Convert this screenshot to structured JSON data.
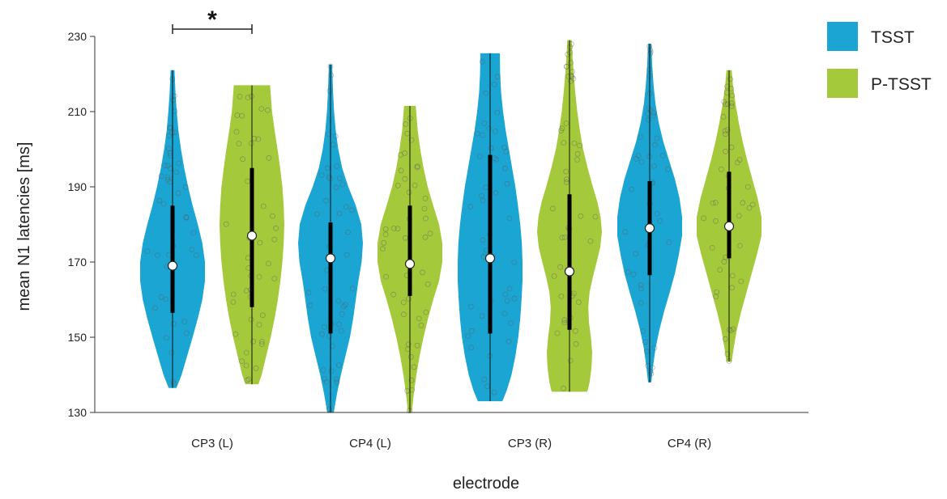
{
  "chart_data": {
    "type": "violin",
    "xlabel": "electrode",
    "ylabel": "mean N1 latencies [ms]",
    "ylim": [
      130,
      230
    ],
    "yticks": [
      130,
      150,
      170,
      190,
      210,
      230
    ],
    "categories": [
      "CP3 (L)",
      "CP4 (L)",
      "CP3 (R)",
      "CP4 (R)"
    ],
    "legend_position": "top-right",
    "grid": false,
    "significance": {
      "label": "*",
      "between": [
        "CP3 (L) TSST",
        "CP3 (L) P-TSST"
      ]
    },
    "series": [
      {
        "name": "TSST",
        "color": "#1aa5d3",
        "groups": [
          {
            "category": "CP3 (L)",
            "min": 136.5,
            "max": 221,
            "q1": 156.5,
            "median": 169,
            "q3": 185,
            "density": [
              [
                136.5,
                0.12
              ],
              [
                140,
                0.28
              ],
              [
                145,
                0.45
              ],
              [
                150,
                0.62
              ],
              [
                155,
                0.78
              ],
              [
                160,
                0.92
              ],
              [
                165,
                1.0
              ],
              [
                170,
                1.0
              ],
              [
                175,
                0.92
              ],
              [
                180,
                0.78
              ],
              [
                185,
                0.62
              ],
              [
                190,
                0.48
              ],
              [
                195,
                0.36
              ],
              [
                200,
                0.26
              ],
              [
                205,
                0.18
              ],
              [
                210,
                0.13
              ],
              [
                215,
                0.09
              ],
              [
                221,
                0.06
              ]
            ]
          },
          {
            "category": "CP4 (L)",
            "min": 130,
            "max": 222.5,
            "q1": 151,
            "median": 171,
            "q3": 180.5,
            "density": [
              [
                130,
                0.1
              ],
              [
                135,
                0.2
              ],
              [
                140,
                0.32
              ],
              [
                145,
                0.46
              ],
              [
                150,
                0.6
              ],
              [
                155,
                0.7
              ],
              [
                160,
                0.78
              ],
              [
                165,
                0.86
              ],
              [
                170,
                0.96
              ],
              [
                175,
                1.0
              ],
              [
                180,
                0.95
              ],
              [
                185,
                0.78
              ],
              [
                190,
                0.55
              ],
              [
                195,
                0.36
              ],
              [
                200,
                0.24
              ],
              [
                205,
                0.16
              ],
              [
                210,
                0.11
              ],
              [
                215,
                0.08
              ],
              [
                222.5,
                0.05
              ]
            ]
          },
          {
            "category": "CP3 (R)",
            "min": 133,
            "max": 225.5,
            "q1": 151,
            "median": 171,
            "q3": 198.5,
            "density": [
              [
                133,
                0.38
              ],
              [
                136,
                0.52
              ],
              [
                140,
                0.66
              ],
              [
                145,
                0.78
              ],
              [
                150,
                0.87
              ],
              [
                155,
                0.93
              ],
              [
                160,
                0.97
              ],
              [
                165,
                1.0
              ],
              [
                170,
                1.0
              ],
              [
                175,
                0.98
              ],
              [
                180,
                0.93
              ],
              [
                185,
                0.86
              ],
              [
                190,
                0.78
              ],
              [
                195,
                0.68
              ],
              [
                200,
                0.58
              ],
              [
                205,
                0.48
              ],
              [
                210,
                0.4
              ],
              [
                215,
                0.34
              ],
              [
                220,
                0.31
              ],
              [
                225.5,
                0.3
              ]
            ]
          },
          {
            "category": "CP4 (R)",
            "min": 138,
            "max": 228,
            "q1": 166.5,
            "median": 179,
            "q3": 191.5,
            "density": [
              [
                138,
                0.05
              ],
              [
                142,
                0.1
              ],
              [
                147,
                0.18
              ],
              [
                152,
                0.3
              ],
              [
                157,
                0.45
              ],
              [
                162,
                0.62
              ],
              [
                167,
                0.78
              ],
              [
                172,
                0.9
              ],
              [
                177,
                1.0
              ],
              [
                182,
                1.0
              ],
              [
                187,
                0.92
              ],
              [
                192,
                0.78
              ],
              [
                197,
                0.6
              ],
              [
                202,
                0.42
              ],
              [
                207,
                0.28
              ],
              [
                212,
                0.18
              ],
              [
                217,
                0.12
              ],
              [
                222,
                0.08
              ],
              [
                228,
                0.05
              ]
            ]
          }
        ]
      },
      {
        "name": "P-TSST",
        "color": "#a4c93b",
        "groups": [
          {
            "category": "CP3 (L)",
            "min": 137.5,
            "max": 217,
            "q1": 158,
            "median": 177,
            "q3": 195,
            "density": [
              [
                137.5,
                0.2
              ],
              [
                140,
                0.3
              ],
              [
                145,
                0.44
              ],
              [
                150,
                0.58
              ],
              [
                155,
                0.7
              ],
              [
                160,
                0.8
              ],
              [
                165,
                0.88
              ],
              [
                170,
                0.94
              ],
              [
                175,
                0.98
              ],
              [
                180,
                1.0
              ],
              [
                185,
                0.98
              ],
              [
                190,
                0.94
              ],
              [
                195,
                0.87
              ],
              [
                200,
                0.79
              ],
              [
                205,
                0.7
              ],
              [
                210,
                0.62
              ],
              [
                217,
                0.56
              ]
            ]
          },
          {
            "category": "CP4 (L)",
            "min": 130,
            "max": 211.5,
            "q1": 161,
            "median": 169.5,
            "q3": 185,
            "density": [
              [
                130,
                0.06
              ],
              [
                135,
                0.12
              ],
              [
                140,
                0.2
              ],
              [
                145,
                0.3
              ],
              [
                150,
                0.42
              ],
              [
                155,
                0.56
              ],
              [
                160,
                0.72
              ],
              [
                165,
                0.9
              ],
              [
                170,
                1.0
              ],
              [
                175,
                1.0
              ],
              [
                180,
                0.9
              ],
              [
                185,
                0.72
              ],
              [
                190,
                0.55
              ],
              [
                195,
                0.42
              ],
              [
                200,
                0.32
              ],
              [
                205,
                0.24
              ],
              [
                211.5,
                0.18
              ]
            ]
          },
          {
            "category": "CP3 (R)",
            "min": 135.5,
            "max": 229,
            "q1": 152,
            "median": 167.5,
            "q3": 188,
            "density": [
              [
                135.5,
                0.55
              ],
              [
                138,
                0.62
              ],
              [
                142,
                0.68
              ],
              [
                146,
                0.7
              ],
              [
                150,
                0.66
              ],
              [
                154,
                0.6
              ],
              [
                158,
                0.58
              ],
              [
                162,
                0.62
              ],
              [
                166,
                0.72
              ],
              [
                170,
                0.84
              ],
              [
                174,
                0.95
              ],
              [
                178,
                1.0
              ],
              [
                182,
                0.96
              ],
              [
                186,
                0.86
              ],
              [
                190,
                0.72
              ],
              [
                195,
                0.56
              ],
              [
                200,
                0.42
              ],
              [
                205,
                0.32
              ],
              [
                210,
                0.24
              ],
              [
                215,
                0.18
              ],
              [
                220,
                0.13
              ],
              [
                225,
                0.09
              ],
              [
                229,
                0.07
              ]
            ]
          },
          {
            "category": "CP4 (R)",
            "min": 143.5,
            "max": 221,
            "q1": 171,
            "median": 179.5,
            "q3": 194,
            "density": [
              [
                143.5,
                0.08
              ],
              [
                147,
                0.14
              ],
              [
                152,
                0.24
              ],
              [
                157,
                0.38
              ],
              [
                162,
                0.54
              ],
              [
                167,
                0.7
              ],
              [
                172,
                0.86
              ],
              [
                177,
                1.0
              ],
              [
                182,
                1.0
              ],
              [
                187,
                0.88
              ],
              [
                192,
                0.72
              ],
              [
                197,
                0.56
              ],
              [
                202,
                0.42
              ],
              [
                207,
                0.3
              ],
              [
                212,
                0.2
              ],
              [
                217,
                0.12
              ],
              [
                221,
                0.08
              ]
            ]
          }
        ]
      }
    ]
  }
}
